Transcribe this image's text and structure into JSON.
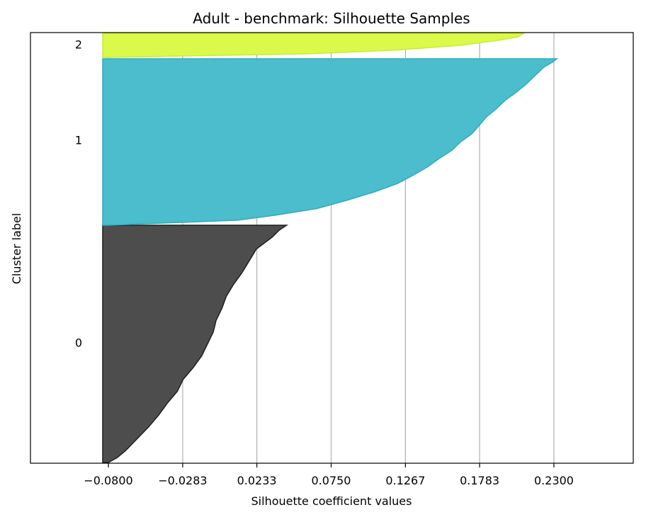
{
  "chart_data": {
    "type": "area",
    "title": "Adult - benchmark: Silhouette Samples",
    "xlabel": "Silhouette coefficient values",
    "ylabel": "Cluster label",
    "xlim": [
      -0.13,
      0.29
    ],
    "xticks": [
      "−0.0800",
      "−0.0283",
      "0.0233",
      "0.0750",
      "0.1267",
      "0.1783",
      "0.2300"
    ],
    "xtick_values": [
      -0.08,
      -0.0283,
      0.0233,
      0.075,
      0.1267,
      0.1783,
      0.23
    ],
    "grid": "vertical",
    "clusters": [
      {
        "label": "0",
        "color": "#4d4d4d",
        "stroke": "#1f1f1f",
        "fraction": [
          0,
          0.02,
          0.05,
          0.1,
          0.15,
          0.2,
          0.25,
          0.3,
          0.35,
          0.4,
          0.45,
          0.5,
          0.55,
          0.6,
          0.65,
          0.7,
          0.75,
          0.8,
          0.85,
          0.9,
          0.95,
          0.98,
          1
        ],
        "values": [
          -0.08,
          -0.074,
          -0.068,
          -0.06,
          -0.052,
          -0.045,
          -0.039,
          -0.032,
          -0.028,
          -0.021,
          -0.015,
          -0.011,
          -0.007,
          -0.005,
          -0.001,
          0.002,
          0.007,
          0.013,
          0.018,
          0.023,
          0.034,
          0.039,
          0.044
        ]
      },
      {
        "label": "1",
        "color": "#4bbdcd",
        "stroke": "#2aaebf",
        "fraction": [
          0,
          0.03,
          0.06,
          0.1,
          0.15,
          0.2,
          0.25,
          0.3,
          0.35,
          0.4,
          0.45,
          0.5,
          0.55,
          0.6,
          0.65,
          0.7,
          0.75,
          0.8,
          0.85,
          0.9,
          0.95,
          0.98,
          1
        ],
        "values": [
          -0.08,
          0.01,
          0.036,
          0.065,
          0.086,
          0.105,
          0.121,
          0.132,
          0.142,
          0.15,
          0.159,
          0.165,
          0.173,
          0.178,
          0.183,
          0.19,
          0.196,
          0.204,
          0.211,
          0.217,
          0.223,
          0.229,
          0.232
        ]
      },
      {
        "label": "2",
        "color": "#dbf94a",
        "stroke": "#c8ee2a",
        "fraction": [
          0,
          0.15,
          0.3,
          0.5,
          0.7,
          0.85,
          1
        ],
        "values": [
          -0.08,
          0.06,
          0.12,
          0.165,
          0.19,
          0.205,
          0.209
        ]
      }
    ]
  }
}
